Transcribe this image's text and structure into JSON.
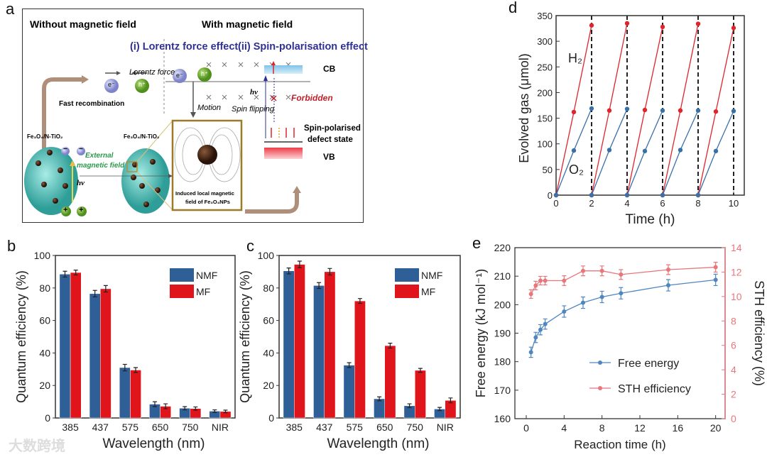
{
  "panels": {
    "a": "a",
    "b": "b",
    "c": "c",
    "d": "d",
    "e": "e"
  },
  "diagram": {
    "without_title": "Without magnetic field",
    "with_title": "With magnetic field",
    "lorentz_title": "(i) Lorentz force effect",
    "spin_title": "(ii) Spin-polarisation effect",
    "electron": "e⁻",
    "hole": "h⁺",
    "fast_recombination": "Fast recombination",
    "lorentz_force": "Lorentz force",
    "motion": "Motion",
    "cb": "CB",
    "vb": "VB",
    "hv": "hν",
    "spin_flipping": "Spin flipping",
    "forbidden": "Forbidden",
    "defect_state_1": "Spin-polarised",
    "defect_state_2": "defect state",
    "catalyst_label": "Fe₃O₄/N-TiO₂",
    "external_field_1": "External",
    "external_field_2": "magnetic field",
    "induced_1": "Induced local magnetic",
    "induced_2": "field of Fe₃O₄NPs",
    "minus": "−",
    "plus": "+"
  },
  "watermark": "大数跨境",
  "chart_data": [
    {
      "id": "d",
      "type": "line",
      "xlabel": "Time (h)",
      "ylabel": "Evolved gas (μmol)",
      "xlim": [
        0,
        10.6
      ],
      "ylim": [
        0,
        350
      ],
      "xticks": [
        0,
        2,
        4,
        6,
        8,
        10
      ],
      "yticks": [
        0,
        50,
        100,
        150,
        200,
        250,
        300,
        350
      ],
      "cycle_dividers": [
        2,
        4,
        6,
        8,
        10
      ],
      "series": [
        {
          "name": "H₂",
          "color": "#e0242b",
          "cycles": [
            {
              "x": [
                0,
                1,
                2
              ],
              "y": [
                0,
                162,
                331
              ]
            },
            {
              "x": [
                2,
                3,
                4
              ],
              "y": [
                0,
                165,
                335
              ]
            },
            {
              "x": [
                4,
                5,
                6
              ],
              "y": [
                0,
                166,
                328
              ]
            },
            {
              "x": [
                6,
                7,
                8
              ],
              "y": [
                0,
                165,
                334
              ]
            },
            {
              "x": [
                8,
                9,
                10
              ],
              "y": [
                0,
                163,
                326
              ]
            }
          ]
        },
        {
          "name": "O₂",
          "color": "#3a70a8",
          "cycles": [
            {
              "x": [
                0,
                1,
                2
              ],
              "y": [
                0,
                87,
                169
              ]
            },
            {
              "x": [
                2,
                3,
                4
              ],
              "y": [
                0,
                88,
                168
              ]
            },
            {
              "x": [
                4,
                5,
                6
              ],
              "y": [
                0,
                86,
                165
              ]
            },
            {
              "x": [
                6,
                7,
                8
              ],
              "y": [
                0,
                88,
                165
              ]
            },
            {
              "x": [
                8,
                9,
                10
              ],
              "y": [
                0,
                86,
                164
              ]
            }
          ]
        }
      ]
    },
    {
      "id": "b",
      "type": "bar",
      "xlabel": "Wavelength (nm)",
      "ylabel": "Quantum efficiency (%)",
      "ylim": [
        0,
        100
      ],
      "yticks": [
        0,
        20,
        40,
        60,
        80,
        100
      ],
      "categories": [
        "385",
        "437",
        "575",
        "650",
        "750",
        "NIR"
      ],
      "legend": "top-right",
      "series": [
        {
          "name": "NMF",
          "color": "#2f5f97",
          "values": [
            88.5,
            76.5,
            31,
            8.5,
            6,
            4.2
          ],
          "err": [
            1.8,
            2,
            2,
            1.5,
            1,
            0.8
          ]
        },
        {
          "name": "MF",
          "color": "#e0151b",
          "values": [
            89.5,
            79.5,
            29.5,
            7.2,
            5.8,
            4.0
          ],
          "err": [
            1.5,
            2,
            1.5,
            1.5,
            1,
            0.8
          ]
        }
      ]
    },
    {
      "id": "c",
      "type": "bar",
      "xlabel": "Wavelength (nm)",
      "ylabel": "Quantum efficiency (%)",
      "ylim": [
        0,
        100
      ],
      "yticks": [
        0,
        20,
        40,
        60,
        80,
        100
      ],
      "categories": [
        "385",
        "437",
        "575",
        "650",
        "750",
        "NIR"
      ],
      "legend": "top-right",
      "series": [
        {
          "name": "NMF",
          "color": "#2f5f97",
          "values": [
            90.5,
            81.5,
            32.5,
            11.8,
            7.5,
            5.5
          ],
          "err": [
            1.8,
            1.8,
            1.5,
            1.2,
            1.2,
            1
          ]
        },
        {
          "name": "MF",
          "color": "#e0151b",
          "values": [
            94.5,
            90,
            72,
            44.5,
            29.3,
            10.8
          ],
          "err": [
            2,
            2,
            1.5,
            1.5,
            1.2,
            1.5
          ]
        }
      ]
    },
    {
      "id": "e",
      "type": "line",
      "xlabel": "Reaction time (h)",
      "ylabel": "Free energy (kJ mol⁻¹)",
      "ylabel_right": "STH efficiency (%)",
      "xlim": [
        -1.2,
        21
      ],
      "ylim": [
        160,
        220
      ],
      "ylim_right": [
        0,
        14
      ],
      "xticks": [
        0,
        4,
        8,
        12,
        16,
        20
      ],
      "yticks": [
        160,
        170,
        180,
        190,
        200,
        210,
        220
      ],
      "yticks_right": [
        0,
        2,
        4,
        6,
        8,
        10,
        12,
        14
      ],
      "legend": "bottom-right",
      "x": [
        0.5,
        1,
        1.5,
        2,
        4,
        6,
        8,
        10,
        15,
        20
      ],
      "series": [
        {
          "name": "Free energy",
          "axis": "left",
          "color": "#4f86c0",
          "values": [
            183.3,
            188.5,
            191.2,
            193.2,
            197.6,
            200.7,
            202.7,
            204,
            206.8,
            208.7
          ],
          "err": [
            1.8,
            1.8,
            1.8,
            1.8,
            2,
            2,
            2,
            2,
            2,
            2
          ]
        },
        {
          "name": "STH efficiency",
          "axis": "right",
          "color": "#e8777c",
          "values": [
            10.2,
            10.9,
            11.3,
            11.3,
            11.3,
            12.1,
            12.1,
            11.8,
            12.2,
            12.4
          ],
          "err": [
            0.35,
            0.35,
            0.35,
            0.35,
            0.4,
            0.4,
            0.4,
            0.4,
            0.4,
            0.4
          ]
        }
      ]
    }
  ]
}
